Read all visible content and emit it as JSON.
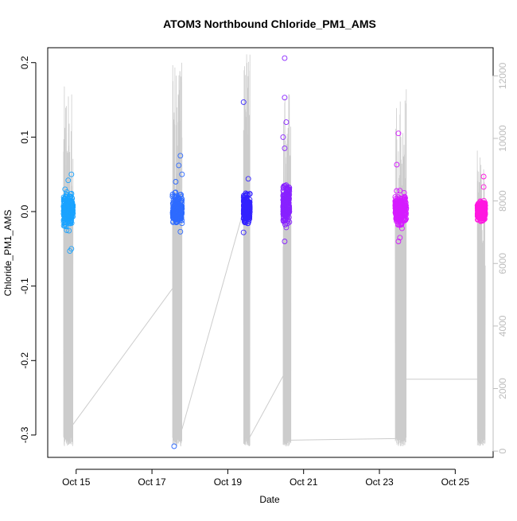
{
  "chart_data": {
    "type": "scatter",
    "title": "ATOM3 Northbound Chloride_PM1_AMS",
    "xlabel": "Date",
    "ylabel": "Chloride_PM1_AMS",
    "x_ticks": [
      "Oct 15",
      "Oct 17",
      "Oct 19",
      "Oct 21",
      "Oct 23",
      "Oct 25"
    ],
    "xlim": [
      "2017-10-14 06:00",
      "2017-10-26 00:00"
    ],
    "left_axis": {
      "ylim": [
        -0.33,
        0.22
      ],
      "ticks": [
        -0.3,
        -0.2,
        -0.1,
        0.0,
        0.1,
        0.2
      ],
      "tick_labels": [
        "-0.3",
        "-0.2",
        "-0.1",
        "0.0",
        "0.1",
        "0.2"
      ]
    },
    "right_axis": {
      "ylim": [
        -200,
        12900
      ],
      "ticks": [
        0,
        2000,
        4000,
        6000,
        8000,
        10000,
        12000
      ],
      "tick_labels": [
        "0",
        "2000",
        "4000",
        "6000",
        "8000",
        "10000",
        "12000"
      ],
      "color": "#bdbdbd"
    },
    "series": [
      {
        "color": "#1aa3ff",
        "x_range": [
          "2017-10-14 16:00",
          "2017-10-14 22:00"
        ],
        "y_core": [
          -0.015,
          0.02
        ],
        "outliers": [
          [
            "2017-10-14 21:00",
            0.05
          ],
          [
            "2017-10-14 19:00",
            0.042
          ],
          [
            "2017-10-14 20:00",
            -0.053
          ],
          [
            "2017-10-14 21:00",
            -0.05
          ],
          [
            "2017-10-14 17:00",
            0.03
          ],
          [
            "2017-10-14 18:00",
            -0.025
          ]
        ]
      },
      {
        "color": "#2e6bff",
        "x_range": [
          "2017-10-17 13:00",
          "2017-10-17 19:00"
        ],
        "y_core": [
          -0.012,
          0.018
        ],
        "outliers": [
          [
            "2017-10-17 14:00",
            -0.315
          ],
          [
            "2017-10-17 18:00",
            0.075
          ],
          [
            "2017-10-17 17:00",
            0.062
          ],
          [
            "2017-10-17 15:00",
            0.04
          ],
          [
            "2017-10-17 19:00",
            0.05
          ],
          [
            "2017-10-17 18:00",
            -0.027
          ]
        ]
      },
      {
        "color": "#3322ff",
        "x_range": [
          "2017-10-19 10:00",
          "2017-10-19 14:00"
        ],
        "y_core": [
          -0.012,
          0.02
        ],
        "outliers": [
          [
            "2017-10-19 10:00",
            0.147
          ],
          [
            "2017-10-19 13:00",
            0.044
          ],
          [
            "2017-10-19 10:00",
            -0.028
          ]
        ]
      },
      {
        "color": "#8822ff",
        "x_range": [
          "2017-10-20 11:00",
          "2017-10-20 15:00"
        ],
        "y_core": [
          -0.012,
          0.03
        ],
        "outliers": [
          [
            "2017-10-20 12:00",
            0.206
          ],
          [
            "2017-10-20 12:00",
            0.153
          ],
          [
            "2017-10-20 13:00",
            0.12
          ],
          [
            "2017-10-20 11:00",
            0.1
          ],
          [
            "2017-10-20 12:00",
            0.085
          ],
          [
            "2017-10-20 12:00",
            -0.04
          ]
        ]
      },
      {
        "color": "#d51bff",
        "x_range": [
          "2017-10-23 10:00",
          "2017-10-23 17:00"
        ],
        "y_core": [
          -0.014,
          0.02
        ],
        "outliers": [
          [
            "2017-10-23 12:00",
            0.105
          ],
          [
            "2017-10-23 11:00",
            0.063
          ],
          [
            "2017-10-23 12:00",
            -0.04
          ],
          [
            "2017-10-23 13:00",
            -0.035
          ]
        ]
      },
      {
        "color": "#ff17e0",
        "x_range": [
          "2017-10-25 14:00",
          "2017-10-25 19:00"
        ],
        "y_core": [
          -0.01,
          0.012
        ],
        "outliers": [
          [
            "2017-10-25 18:00",
            0.047
          ],
          [
            "2017-10-25 18:00",
            0.033
          ],
          [
            "2017-10-25 16:00",
            -0.012
          ]
        ]
      }
    ],
    "altitude_series": {
      "axis": "right",
      "color": "#cccccc",
      "segments": [
        {
          "start": "2017-10-14 16:00",
          "end": "2017-10-14 22:00",
          "max": 11700,
          "min": 150
        },
        {
          "start": "2017-10-17 13:00",
          "end": "2017-10-17 19:00",
          "max": 12850,
          "min": 150
        },
        {
          "start": "2017-10-19 10:00",
          "end": "2017-10-19 14:00",
          "max": 12700,
          "min": 150
        },
        {
          "start": "2017-10-20 11:00",
          "end": "2017-10-20 16:00",
          "max": 11800,
          "min": 150
        },
        {
          "start": "2017-10-23 10:00",
          "end": "2017-10-23 17:00",
          "max": 12000,
          "min": 150
        },
        {
          "start": "2017-10-25 14:00",
          "end": "2017-10-25 19:00",
          "max": 9800,
          "min": 150
        }
      ],
      "connectors": [
        [
          [
            "2017-10-14 22:00",
            850
          ],
          [
            "2017-10-17 13:00",
            5200
          ]
        ],
        [
          [
            "2017-10-17 19:00",
            700
          ],
          [
            "2017-10-19 10:00",
            7700
          ]
        ],
        [
          [
            "2017-10-19 14:00",
            450
          ],
          [
            "2017-10-20 11:00",
            2400
          ]
        ],
        [
          [
            "2017-10-20 16:00",
            350
          ],
          [
            "2017-10-23 10:00",
            400
          ]
        ],
        [
          [
            "2017-10-23 17:00",
            2300
          ],
          [
            "2017-10-25 14:00",
            2300
          ]
        ]
      ]
    }
  }
}
